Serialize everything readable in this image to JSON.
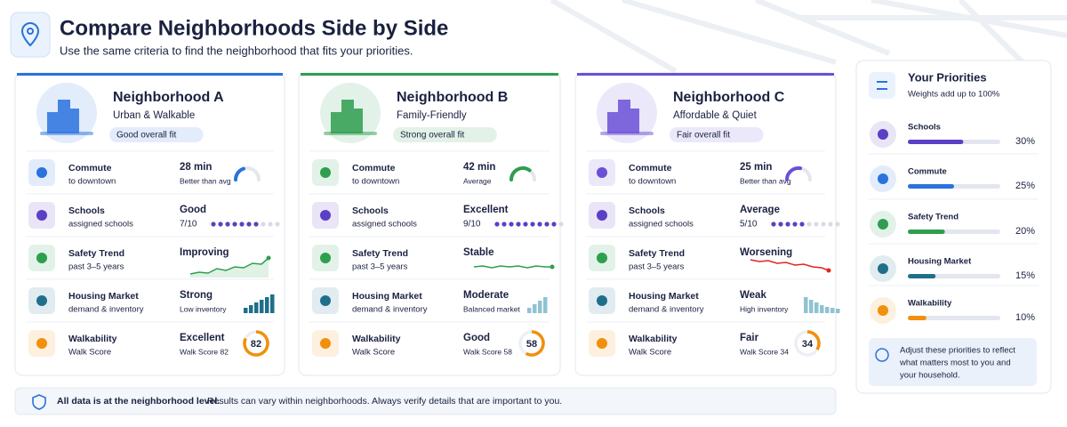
{
  "header": {
    "title": "Compare Neighborhoods Side by Side",
    "subtitle": "Use the same criteria to find the neighborhood that fits your priorities."
  },
  "neighborhoods": [
    {
      "name": "Neighborhood A",
      "tagline": "Urban & Walkable",
      "fit": "Good overall fit",
      "accent": "#2a72de",
      "rows": [
        {
          "label": "Commute",
          "sublabel": "to downtown",
          "value": "28 min",
          "note": "Better than avg",
          "color": "#2a72de"
        },
        {
          "label": "Schools",
          "sublabel": "assigned schools",
          "value": "Good",
          "note": "7/10",
          "color": "#5b3fc4"
        },
        {
          "label": "Safety Trend",
          "sublabel": "past 3–5 years",
          "value": "Improving",
          "color": "#2e9e4f"
        },
        {
          "label": "Housing Market",
          "sublabel": "demand & inventory",
          "value": "Strong",
          "note": "Low inventory",
          "color": "#1f6f8b"
        },
        {
          "label": "Walkability",
          "sublabel": "Walk Score",
          "value": "Excellent",
          "note": "Walk Score 82",
          "color": "#f0900c"
        }
      ],
      "walk_score": 82
    },
    {
      "name": "Neighborhood B",
      "tagline": "Family-Friendly",
      "fit": "Strong overall fit",
      "accent": "#2e9e4f",
      "rows": [
        {
          "label": "Commute",
          "sublabel": "to downtown",
          "value": "42 min",
          "note": "Average",
          "color": "#2e9e4f"
        },
        {
          "label": "Schools",
          "sublabel": "assigned schools",
          "value": "Excellent",
          "note": "9/10",
          "color": "#5b3fc4"
        },
        {
          "label": "Safety Trend",
          "sublabel": "past 3–5 years",
          "value": "Stable",
          "color": "#2e9e4f"
        },
        {
          "label": "Housing Market",
          "sublabel": "demand & inventory",
          "value": "Moderate",
          "note": "Balanced market",
          "color": "#1f6f8b"
        },
        {
          "label": "Walkability",
          "sublabel": "Walk Score",
          "value": "Good",
          "note": "Walk Score 58",
          "color": "#f0900c"
        }
      ],
      "walk_score": 58
    },
    {
      "name": "Neighborhood C",
      "tagline": "Affordable & Quiet",
      "fit": "Fair overall fit",
      "accent": "#6b4fd6",
      "rows": [
        {
          "label": "Commute",
          "sublabel": "to downtown",
          "value": "25 min",
          "note": "Better than avg",
          "color": "#6b4fd6"
        },
        {
          "label": "Schools",
          "sublabel": "assigned schools",
          "value": "Average",
          "note": "5/10",
          "color": "#5b3fc4"
        },
        {
          "label": "Safety Trend",
          "sublabel": "past 3–5 years",
          "value": "Worsening",
          "color": "#e0261b"
        },
        {
          "label": "Housing Market",
          "sublabel": "demand & inventory",
          "value": "Weak",
          "note": "High inventory",
          "color": "#1f6f8b"
        },
        {
          "label": "Walkability",
          "sublabel": "Walk Score",
          "value": "Fair",
          "note": "Walk Score 34",
          "color": "#f0900c"
        }
      ],
      "walk_score": 34
    }
  ],
  "priorities": {
    "title": "Your Priorities",
    "subtitle": "Weights add up to 100%",
    "items": [
      {
        "name": "Schools",
        "weight": 30,
        "weight_label": "30%",
        "color": "#5b3fc4"
      },
      {
        "name": "Commute",
        "weight": 25,
        "weight_label": "25%",
        "color": "#2a72de"
      },
      {
        "name": "Safety Trend",
        "weight": 20,
        "weight_label": "20%",
        "color": "#2e9e4f"
      },
      {
        "name": "Housing Market",
        "weight": 15,
        "weight_label": "15%",
        "color": "#1f6f8b"
      },
      {
        "name": "Walkability",
        "weight": 10,
        "weight_label": "10%",
        "color": "#f0900c"
      }
    ],
    "note": [
      "Adjust these priorities to reflect",
      "what matters most to you and",
      "your household."
    ]
  },
  "footer": {
    "bold": "All data is at the neighborhood level.",
    "text": "Results can vary within neighborhoods. Always verify details that are important to you."
  }
}
